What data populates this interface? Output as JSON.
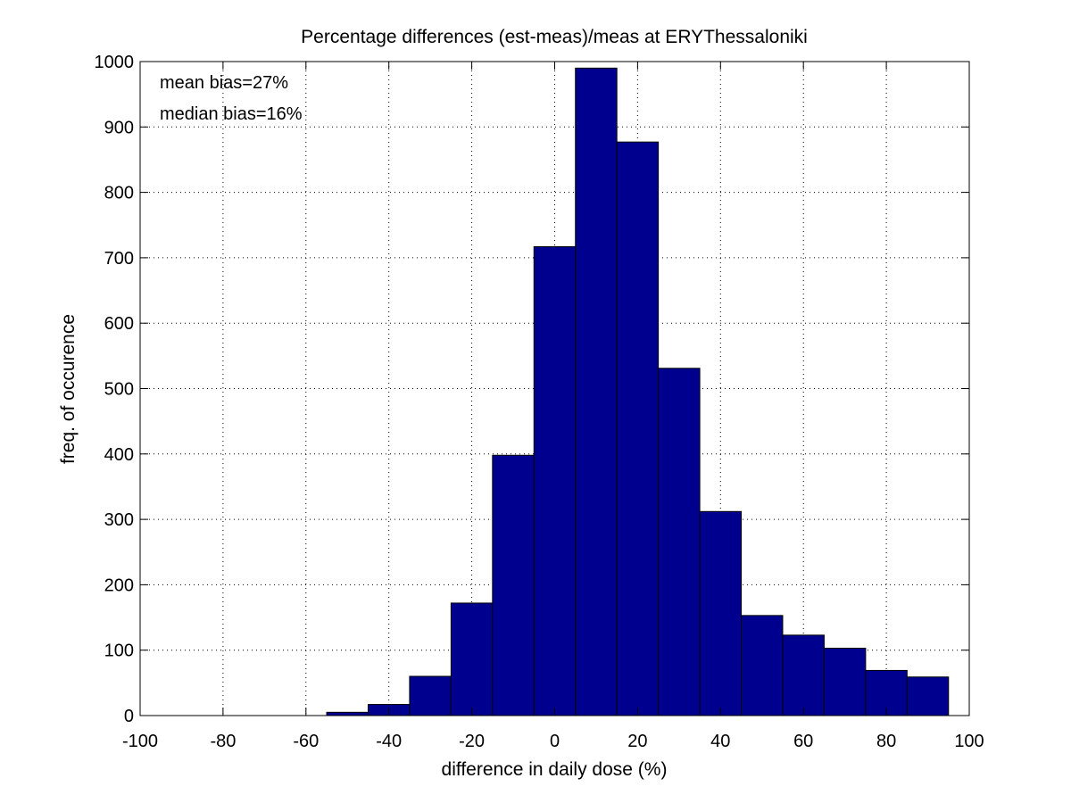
{
  "chart_data": {
    "type": "bar",
    "title": "Percentage differences (est-meas)/meas at ERYThessaloniki",
    "xlabel": "difference in daily dose (%)",
    "ylabel": "freq. of occurence",
    "xlim": [
      -100,
      100
    ],
    "ylim": [
      0,
      1000
    ],
    "xticks": [
      "-100",
      "-80",
      "-60",
      "-40",
      "-20",
      "0",
      "20",
      "40",
      "60",
      "80",
      "100"
    ],
    "yticks": [
      "0",
      "100",
      "200",
      "300",
      "400",
      "500",
      "600",
      "700",
      "800",
      "900",
      "1000"
    ],
    "grid": true,
    "bin_width": 10,
    "bin_centers": [
      -50,
      -40,
      -30,
      -20,
      -10,
      0,
      10,
      20,
      30,
      40,
      50,
      60,
      70,
      80,
      90
    ],
    "values": [
      5,
      17,
      60,
      172,
      398,
      717,
      990,
      877,
      531,
      312,
      153,
      123,
      103,
      69,
      59
    ],
    "annotations": [
      "mean bias=27%",
      "median bias=16%"
    ],
    "colors": {
      "bar_fill": "#00008f",
      "bar_edge": "#000000",
      "grid": "#000000"
    }
  }
}
